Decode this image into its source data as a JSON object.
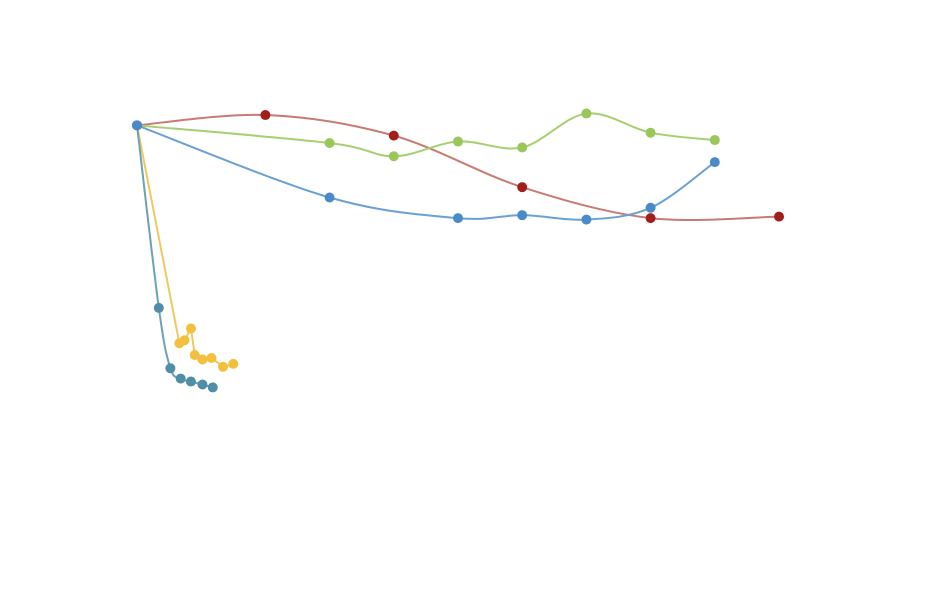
{
  "chart_data": {
    "type": "line",
    "title": "",
    "xlabel": "",
    "ylabel": "",
    "x_range": [
      0,
      500
    ],
    "y_range": [
      0,
      290
    ],
    "grid": false,
    "legend": "none",
    "series": [
      {
        "color": "#a31d1a",
        "line_color": "#c97a72",
        "smooth": true,
        "points": [
          [
            0,
            266
          ],
          [
            100,
            273
          ],
          [
            200,
            259
          ],
          [
            300,
            224
          ],
          [
            400,
            203
          ],
          [
            500,
            204
          ]
        ]
      },
      {
        "color": "#9ac65a",
        "line_color": "#a6cf6e",
        "smooth": true,
        "points": [
          [
            150,
            254
          ],
          [
            200,
            245
          ],
          [
            250,
            255
          ],
          [
            300,
            251
          ],
          [
            350,
            274
          ],
          [
            400,
            261
          ],
          [
            450,
            256
          ]
        ]
      },
      {
        "color": "#4a8ac9",
        "line_color": "#6aa0d3",
        "smooth": true,
        "points": [
          [
            150,
            217
          ],
          [
            250,
            203
          ],
          [
            300,
            205
          ],
          [
            350,
            202
          ],
          [
            400,
            210
          ],
          [
            450,
            241
          ]
        ]
      },
      {
        "color": "#f2c03e",
        "line_color": "#f0c860",
        "smooth": false,
        "points": [
          [
            33,
            118
          ],
          [
            37,
            120
          ],
          [
            42,
            128
          ],
          [
            45,
            110
          ],
          [
            51,
            107
          ],
          [
            58,
            108
          ],
          [
            67,
            102
          ],
          [
            75,
            104
          ]
        ]
      },
      {
        "color": "#4f8ea6",
        "line_color": "#6aa3b2",
        "smooth": true,
        "points": [
          [
            17,
            142
          ],
          [
            26,
            101
          ],
          [
            34,
            94
          ],
          [
            42,
            92
          ],
          [
            51,
            90
          ],
          [
            59,
            88
          ]
        ]
      }
    ],
    "origin_point": {
      "color": "#4a8ac9",
      "point": [
        0,
        266
      ]
    }
  }
}
